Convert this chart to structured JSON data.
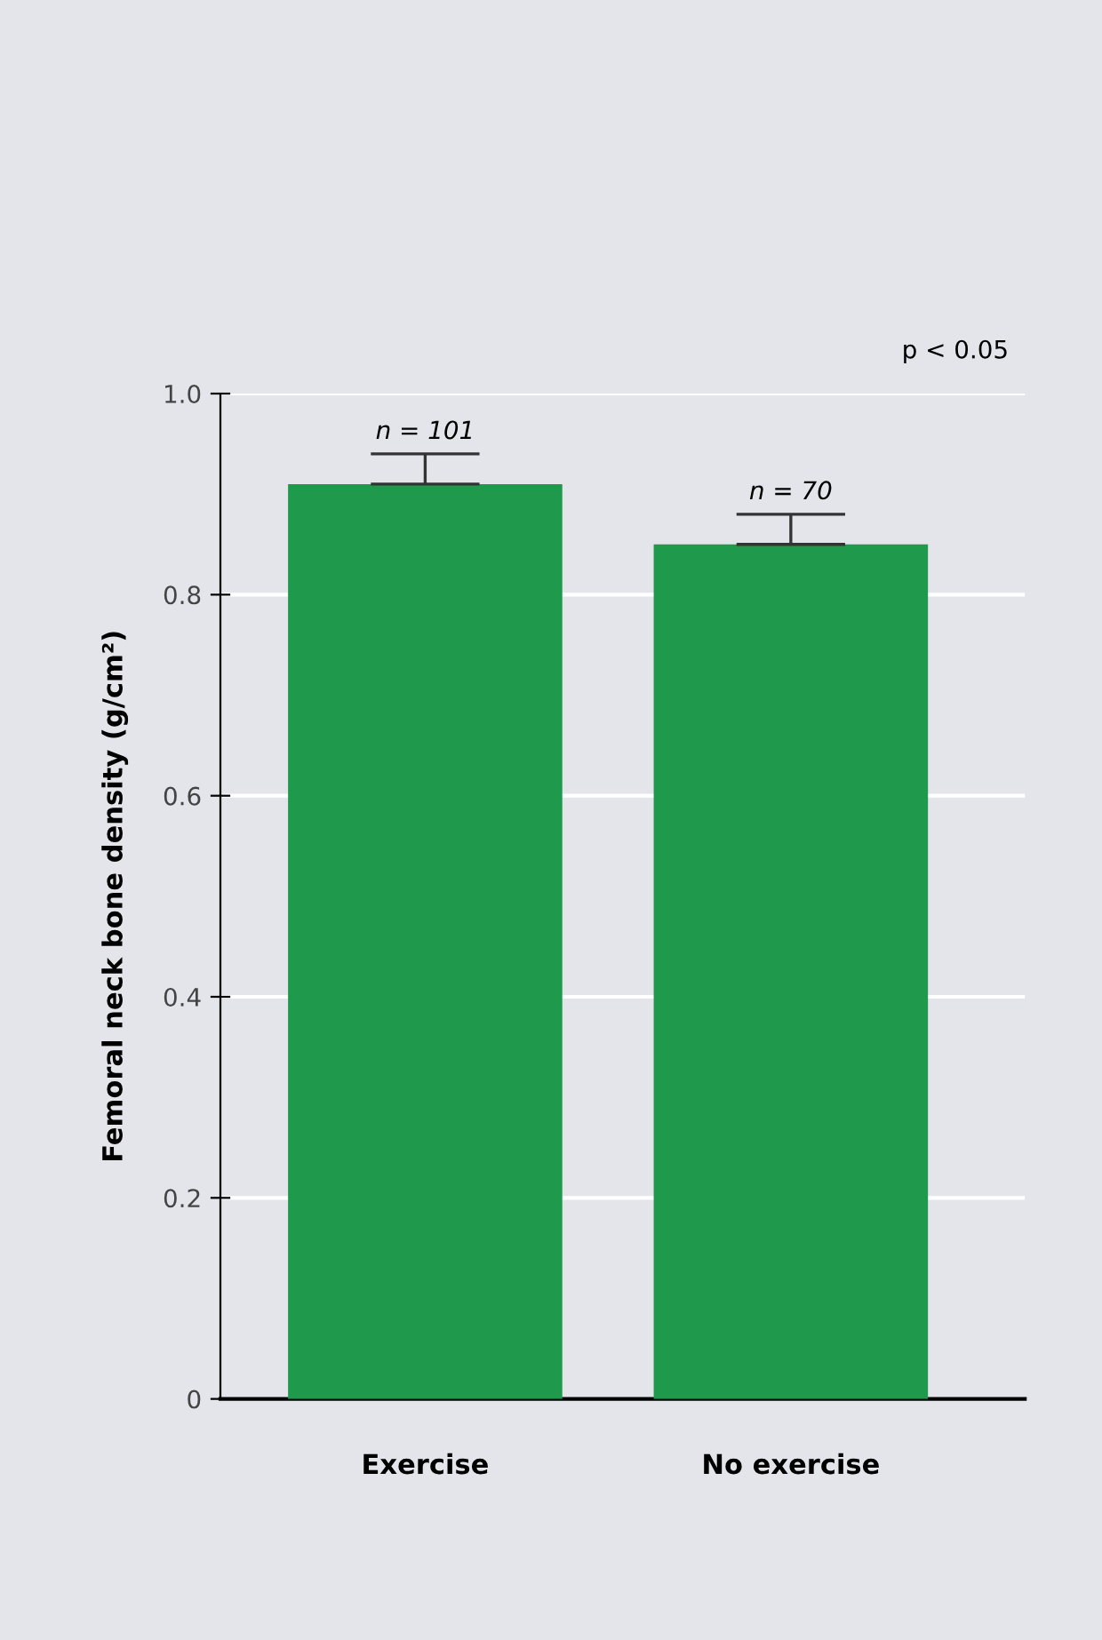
{
  "chart_data": {
    "type": "bar",
    "ylabel": "Femoral neck bone density (g/cm²)",
    "categories": [
      "Exercise",
      "No exercise"
    ],
    "values": [
      0.91,
      0.85
    ],
    "errors": [
      [
        0.91,
        0.94
      ],
      [
        0.85,
        0.88
      ]
    ],
    "color": "#1f9a4c",
    "ylim": [
      0,
      1
    ],
    "yticks": [
      0,
      0.2,
      0.4,
      0.6,
      0.8,
      {
        "value": 1,
        "label": "1.0"
      }
    ],
    "grid": "y",
    "annotations": [
      "n = 101",
      "n = 70",
      "p < 0.05"
    ]
  }
}
